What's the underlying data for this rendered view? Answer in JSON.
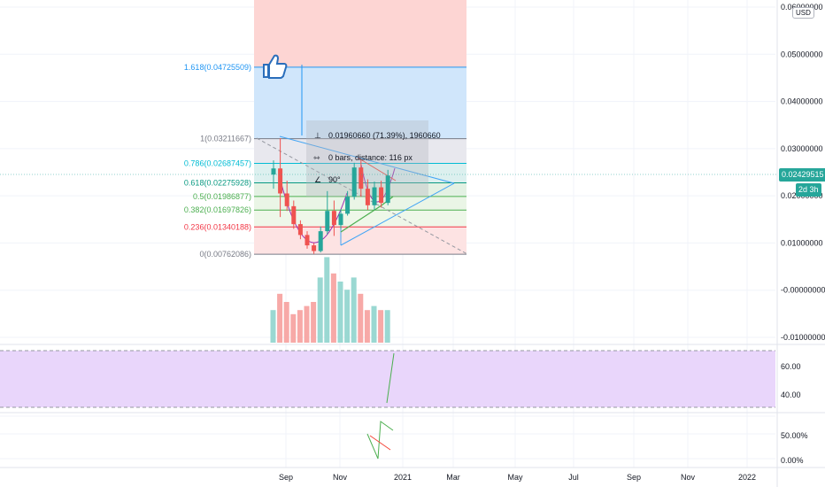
{
  "currency": "USD",
  "price": {
    "last_label": "0.02429515",
    "countdown": "2d 3h",
    "ticks": [
      "0.06000000",
      "0.05000000",
      "0.04000000",
      "0.03000000",
      "0.02000000",
      "0.01000000",
      "-0.00000000",
      "-0.01000000"
    ],
    "tick_values": [
      0.06,
      0.05,
      0.04,
      0.03,
      0.02,
      0.01,
      0,
      -0.01
    ]
  },
  "indicator1": {
    "ticks": [
      "60.00",
      "40.00"
    ]
  },
  "indicator2": {
    "ticks": [
      "50.00%",
      "0.00%"
    ]
  },
  "time_axis": {
    "labels": [
      "Sep",
      "Nov",
      "2021",
      "Mar",
      "May",
      "Jul",
      "Sep",
      "Nov",
      "2022"
    ]
  },
  "fib_levels": [
    {
      "label": "1.618(0.04725509)",
      "level": 1.618,
      "price": 0.04725509,
      "color": "#2196f3"
    },
    {
      "label": "1(0.03211667)",
      "level": 1,
      "price": 0.03211667,
      "color": "#787b86"
    },
    {
      "label": "0.786(0.02687457)",
      "level": 0.786,
      "price": 0.02687457,
      "color": "#00bcd4"
    },
    {
      "label": "0.618(0.02275928)",
      "level": 0.618,
      "price": 0.02275928,
      "color": "#089981"
    },
    {
      "label": "0.5(0.01986877)",
      "level": 0.5,
      "price": 0.01986877,
      "color": "#4caf50"
    },
    {
      "label": "0.382(0.01697826)",
      "level": 0.382,
      "price": 0.01697826,
      "color": "#4caf50"
    },
    {
      "label": "0.236(0.01340188)",
      "level": 0.236,
      "price": 0.01340188,
      "color": "#f23645"
    },
    {
      "label": "0(0.00762086)",
      "level": 0,
      "price": 0.00762086,
      "color": "#787b86"
    }
  ],
  "measure": {
    "line1": "0.01960660 (71.39%), 1960660",
    "line2": "0 bars, distance: 116 px",
    "line3": "90°"
  },
  "colors": {
    "up": "#26a69a",
    "down": "#ef5350",
    "fib_top_fill": "#fdd5d3",
    "fib_blue_fill": "#d0e6fb",
    "indicator_band": "#e9d6fb",
    "accent": "#2196f3"
  },
  "icons": [
    "thumbs-up-icon"
  ],
  "chart_data": {
    "type": "candlestick",
    "interval": "weekly",
    "candles": [
      {
        "o": 0.0245,
        "h": 0.0275,
        "l": 0.0215,
        "c": 0.0258
      },
      {
        "o": 0.0258,
        "h": 0.0322,
        "l": 0.0155,
        "c": 0.0205
      },
      {
        "o": 0.0205,
        "h": 0.0232,
        "l": 0.0168,
        "c": 0.0178
      },
      {
        "o": 0.0178,
        "h": 0.019,
        "l": 0.013,
        "c": 0.014
      },
      {
        "o": 0.014,
        "h": 0.0148,
        "l": 0.0108,
        "c": 0.0117
      },
      {
        "o": 0.0117,
        "h": 0.0125,
        "l": 0.0088,
        "c": 0.0095
      },
      {
        "o": 0.0095,
        "h": 0.01,
        "l": 0.0077,
        "c": 0.0083
      },
      {
        "o": 0.0083,
        "h": 0.0135,
        "l": 0.008,
        "c": 0.0125
      },
      {
        "o": 0.0125,
        "h": 0.021,
        "l": 0.0118,
        "c": 0.0168
      },
      {
        "o": 0.0168,
        "h": 0.019,
        "l": 0.0115,
        "c": 0.0138
      },
      {
        "o": 0.0138,
        "h": 0.0172,
        "l": 0.013,
        "c": 0.0162
      },
      {
        "o": 0.0162,
        "h": 0.021,
        "l": 0.0158,
        "c": 0.0198
      },
      {
        "o": 0.0198,
        "h": 0.027,
        "l": 0.0192,
        "c": 0.026
      },
      {
        "o": 0.026,
        "h": 0.0275,
        "l": 0.0198,
        "c": 0.0215
      },
      {
        "o": 0.0215,
        "h": 0.0235,
        "l": 0.017,
        "c": 0.018
      },
      {
        "o": 0.018,
        "h": 0.023,
        "l": 0.017,
        "c": 0.0218
      },
      {
        "o": 0.0218,
        "h": 0.0232,
        "l": 0.0175,
        "c": 0.0185
      },
      {
        "o": 0.0185,
        "h": 0.0255,
        "l": 0.018,
        "c": 0.0243
      }
    ],
    "volume": [
      8,
      12,
      10,
      7,
      8,
      9,
      10,
      16,
      21,
      17,
      15,
      13,
      16,
      12,
      8,
      9,
      8,
      8
    ]
  }
}
